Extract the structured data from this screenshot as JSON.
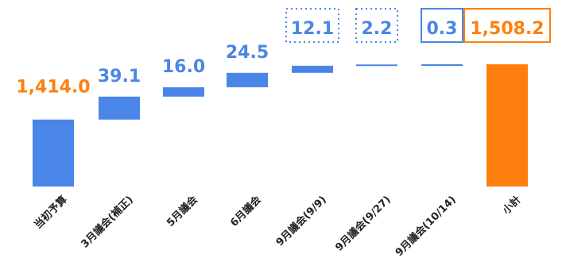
{
  "chart_data": {
    "type": "waterfall",
    "title": "",
    "xlabel": "",
    "ylabel": "",
    "ylim": [
      1300,
      1520
    ],
    "grid": false,
    "legend": "none",
    "categories": [
      "当初予算",
      "3月議会(補正)",
      "5月議会",
      "6月議会",
      "9月議会(9/9)",
      "9月議会(9/27)",
      "9月議会(10/14)",
      "小計"
    ],
    "values": [
      1414.0,
      39.1,
      16.0,
      24.5,
      12.1,
      2.2,
      0.3,
      1508.2
    ],
    "labels": [
      "1,414.0",
      "39.1",
      "16.0",
      "24.5",
      "12.1",
      "2.2",
      "0.3",
      "1,508.2"
    ],
    "kinds": [
      "total",
      "increase",
      "increase",
      "increase",
      "increase",
      "increase",
      "increase",
      "total"
    ],
    "label_boxes": [
      "none",
      "none",
      "none",
      "none",
      "dotted",
      "dotted",
      "solid",
      "solid"
    ],
    "colors": {
      "increase": "#4a86e8",
      "total_start": "#4a86e8",
      "total_end": "#ff7f0e",
      "label_start": "#ff7f0e",
      "label_increase": "#4a86e8",
      "label_end": "#ff7f0e"
    }
  }
}
